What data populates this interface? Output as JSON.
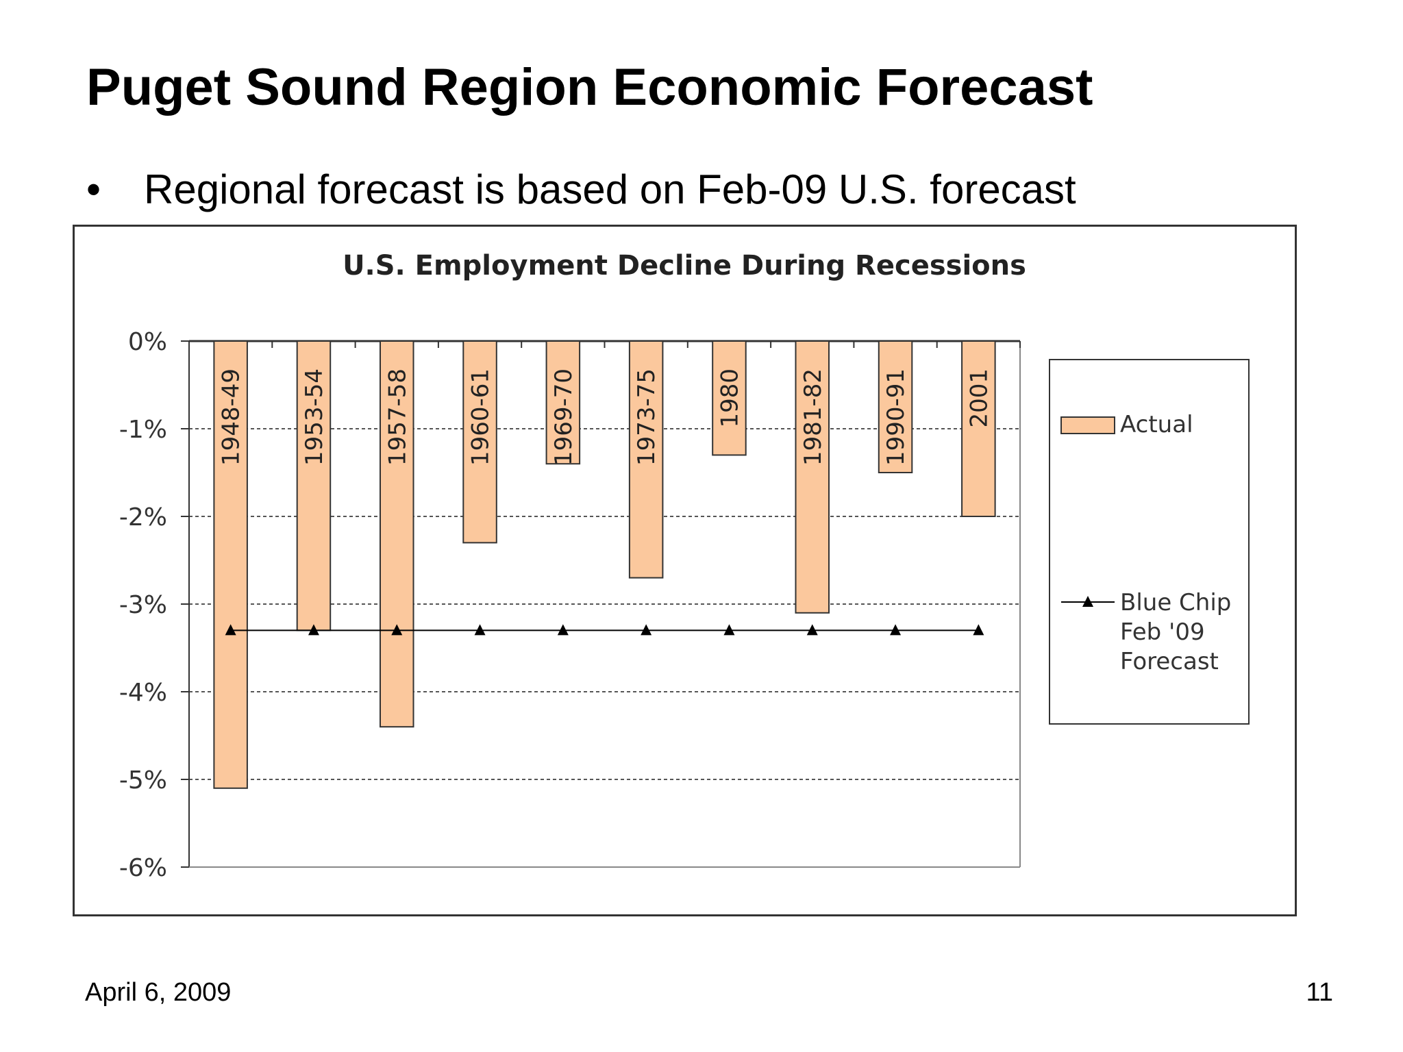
{
  "slide": {
    "title": "Puget Sound Region Economic Forecast",
    "bullet_symbol": "•",
    "bullet_text": "Regional forecast is based on Feb-09 U.S. forecast",
    "footer_date": "April 6, 2009",
    "page_number": "11"
  },
  "colors": {
    "bar_fill": "#fbc89d",
    "bar_stroke": "#333333",
    "line": "#000000",
    "grid": "#555555"
  },
  "chart_data": {
    "type": "bar",
    "title": "U.S. Employment Decline During Recessions",
    "xlabel": "",
    "ylabel": "",
    "ylim": [
      -6,
      0
    ],
    "yticks": [
      0,
      -1,
      -2,
      -3,
      -4,
      -5,
      -6
    ],
    "ytick_labels": [
      "0%",
      "-1%",
      "-2%",
      "-3%",
      "-4%",
      "-5%",
      "-6%"
    ],
    "grid": true,
    "legend_position": "right",
    "categories": [
      "1948-49",
      "1953-54",
      "1957-58",
      "1960-61",
      "1969-70",
      "1973-75",
      "1980",
      "1981-82",
      "1990-91",
      "2001"
    ],
    "series": [
      {
        "name": "Actual",
        "type": "bar",
        "values": [
          -5.1,
          -3.3,
          -4.4,
          -2.3,
          -1.4,
          -2.7,
          -1.3,
          -3.1,
          -1.5,
          -2.0
        ]
      },
      {
        "name": "Blue Chip Feb '09 Forecast",
        "type": "line",
        "marker": "triangle",
        "values": [
          -3.3,
          -3.3,
          -3.3,
          -3.3,
          -3.3,
          -3.3,
          -3.3,
          -3.3,
          -3.3,
          -3.3
        ]
      }
    ],
    "legend": {
      "actual_label": "Actual",
      "forecast_label_lines": [
        "Blue Chip",
        "Feb '09",
        "Forecast"
      ]
    }
  }
}
